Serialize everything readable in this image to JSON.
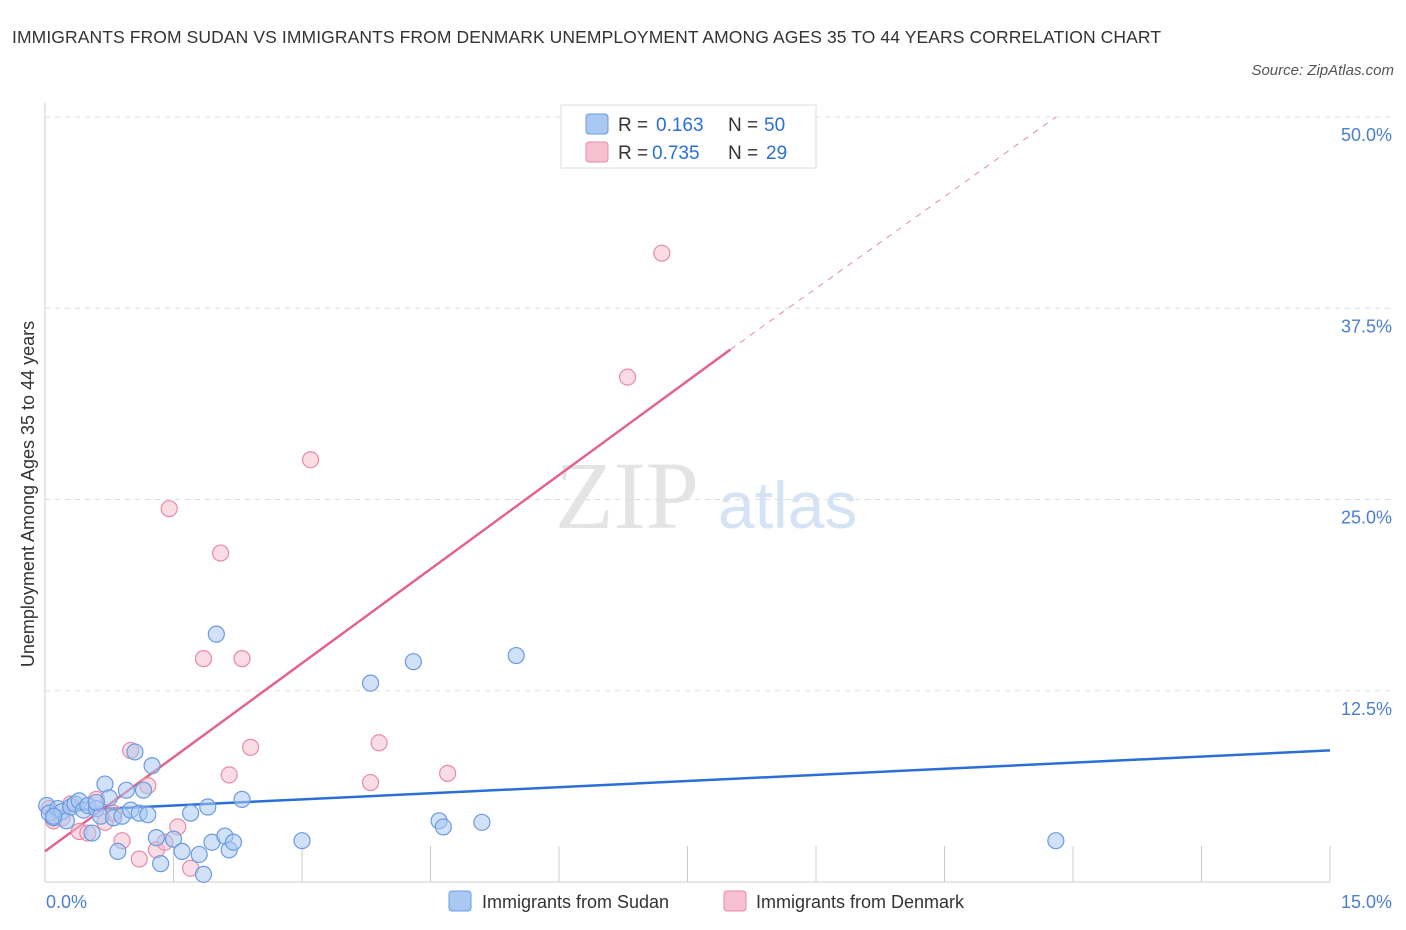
{
  "title": "IMMIGRANTS FROM SUDAN VS IMMIGRANTS FROM DENMARK UNEMPLOYMENT AMONG AGES 35 TO 44 YEARS CORRELATION CHART",
  "source": "Source: ZipAtlas.com",
  "watermark": {
    "zip": "ZIP",
    "atlas": "atlas"
  },
  "colors": {
    "sudan_fill": "#a9c9f2",
    "sudan_stroke": "#6b9be0",
    "sudan_line": "#2b6fd6",
    "denmark_fill": "#f6c0d0",
    "denmark_stroke": "#e88aa8",
    "denmark_line": "#e0648c",
    "grid": "#dddddd",
    "tick_label": "#4a7fd0"
  },
  "legend": {
    "rows": [
      {
        "r_label": "R =",
        "r_value": "0.163",
        "n_label": "N =",
        "n_value": "50"
      },
      {
        "r_label": "R =",
        "r_value": "0.735",
        "n_label": "N =",
        "n_value": "29"
      }
    ]
  },
  "chart_data": {
    "type": "scatter",
    "title": "IMMIGRANTS FROM SUDAN VS IMMIGRANTS FROM DENMARK UNEMPLOYMENT AMONG AGES 35 TO 44 YEARS CORRELATION CHART",
    "xlabel": "",
    "ylabel": "Unemployment Among Ages 35 to 44 years",
    "xlim": [
      0,
      15
    ],
    "ylim": [
      0,
      50
    ],
    "x_tick_labels": [
      "0.0%",
      "15.0%"
    ],
    "y_ticks": [
      12.5,
      25.0,
      37.5,
      50.0
    ],
    "y_tick_labels": [
      "12.5%",
      "25.0%",
      "37.5%",
      "50.0%"
    ],
    "grid": true,
    "series": [
      {
        "name": "Immigrants from Sudan",
        "points": [
          [
            0.02,
            5.0
          ],
          [
            0.05,
            4.5
          ],
          [
            0.1,
            4.2
          ],
          [
            0.15,
            4.8
          ],
          [
            0.2,
            4.6
          ],
          [
            0.25,
            4.0
          ],
          [
            0.3,
            4.9
          ],
          [
            0.35,
            5.1
          ],
          [
            0.4,
            5.3
          ],
          [
            0.45,
            4.7
          ],
          [
            0.5,
            5.0
          ],
          [
            0.55,
            3.2
          ],
          [
            0.6,
            4.8
          ],
          [
            0.65,
            4.3
          ],
          [
            0.7,
            6.4
          ],
          [
            0.75,
            5.5
          ],
          [
            0.8,
            4.2
          ],
          [
            0.85,
            2.0
          ],
          [
            0.9,
            4.3
          ],
          [
            0.95,
            6.0
          ],
          [
            1.0,
            4.7
          ],
          [
            1.05,
            8.5
          ],
          [
            1.1,
            4.5
          ],
          [
            1.15,
            6.0
          ],
          [
            1.2,
            4.4
          ],
          [
            1.25,
            7.6
          ],
          [
            1.3,
            2.9
          ],
          [
            1.35,
            1.2
          ],
          [
            1.5,
            2.8
          ],
          [
            1.6,
            2.0
          ],
          [
            1.7,
            4.5
          ],
          [
            1.8,
            1.8
          ],
          [
            1.85,
            0.5
          ],
          [
            1.9,
            4.9
          ],
          [
            1.95,
            2.6
          ],
          [
            2.0,
            16.2
          ],
          [
            2.1,
            3.0
          ],
          [
            2.15,
            2.1
          ],
          [
            2.2,
            2.6
          ],
          [
            2.3,
            5.4
          ],
          [
            3.0,
            2.7
          ],
          [
            3.8,
            13.0
          ],
          [
            4.3,
            14.4
          ],
          [
            4.6,
            4.0
          ],
          [
            4.65,
            3.6
          ],
          [
            5.1,
            3.9
          ],
          [
            5.5,
            14.8
          ],
          [
            11.8,
            2.7
          ],
          [
            0.1,
            4.3
          ],
          [
            0.6,
            5.2
          ]
        ],
        "trend": {
          "x0": 0,
          "y0": 4.6,
          "x1": 15,
          "y1": 8.6
        }
      },
      {
        "name": "Immigrants from Denmark",
        "points": [
          [
            0.05,
            4.8
          ],
          [
            0.1,
            4.0
          ],
          [
            0.2,
            4.2
          ],
          [
            0.3,
            5.1
          ],
          [
            0.4,
            3.3
          ],
          [
            0.5,
            3.2
          ],
          [
            0.6,
            5.4
          ],
          [
            0.7,
            3.9
          ],
          [
            0.8,
            4.5
          ],
          [
            0.9,
            2.7
          ],
          [
            1.0,
            8.6
          ],
          [
            1.1,
            1.5
          ],
          [
            1.2,
            6.3
          ],
          [
            1.3,
            2.1
          ],
          [
            1.4,
            2.6
          ],
          [
            1.45,
            24.4
          ],
          [
            1.55,
            3.6
          ],
          [
            1.7,
            0.9
          ],
          [
            1.85,
            14.6
          ],
          [
            2.05,
            21.5
          ],
          [
            2.15,
            7.0
          ],
          [
            2.3,
            14.6
          ],
          [
            2.4,
            8.8
          ],
          [
            3.1,
            27.6
          ],
          [
            3.8,
            6.5
          ],
          [
            3.9,
            9.1
          ],
          [
            4.7,
            7.1
          ],
          [
            6.8,
            33.0
          ],
          [
            7.2,
            41.1
          ]
        ],
        "trend": {
          "x0": 0,
          "y0": 2.0,
          "x1": 8.0,
          "y1": 34.8
        },
        "trend_dashed": {
          "x0": 8.0,
          "y0": 34.8,
          "x1": 11.8,
          "y1": 50.0
        }
      }
    ]
  },
  "bottom_legend": [
    {
      "label": "Immigrants from Sudan"
    },
    {
      "label": "Immigrants from Denmark"
    }
  ]
}
